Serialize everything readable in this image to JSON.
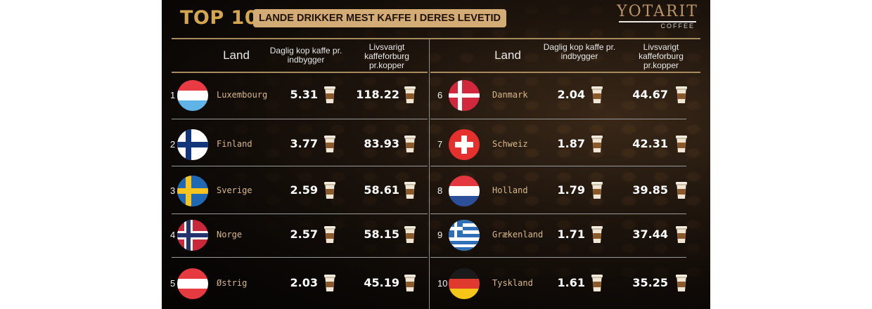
{
  "title": "TOP 10",
  "subtitle": "LANDE DRIKKER MEST KAFFE I DERES LEVETID",
  "brand": {
    "name": "YOTARIT",
    "sub": "COFFEE"
  },
  "colors": {
    "background": "#0b0806",
    "gold": "#d4a64f",
    "badge": "#d2ac74",
    "country_text": "#d8b88a",
    "value_text": "#ffffff"
  },
  "headers": {
    "land": "Land",
    "daily": [
      "Daglig kop kaffe pr.",
      "indbygger"
    ],
    "lifetime": [
      "Livsvarigt",
      "kaffeforburg",
      "pr.kopper"
    ]
  },
  "chart_data": {
    "type": "table",
    "title": "TOP 10 LANDE DRIKKER MEST KAFFE I DERES LEVETID",
    "columns": [
      "Land",
      "Daglig kop kaffe pr. indbygger",
      "Livsvarigt kaffeforburg pr.kopper"
    ],
    "rows": [
      {
        "rank": "1",
        "country": "Luxembourg",
        "daily": "5.31",
        "lifetime": "118.22",
        "flag": "luxembourg-flag"
      },
      {
        "rank": "2",
        "country": "Finland",
        "daily": "3.77",
        "lifetime": "83.93",
        "flag": "finland-flag"
      },
      {
        "rank": "3",
        "country": "Sverige",
        "daily": "2.59",
        "lifetime": "58.61",
        "flag": "sweden-flag"
      },
      {
        "rank": "4",
        "country": "Norge",
        "daily": "2.57",
        "lifetime": "58.15",
        "flag": "norway-flag"
      },
      {
        "rank": "5",
        "country": "Østrig",
        "daily": "2.03",
        "lifetime": "45.19",
        "flag": "austria-flag"
      },
      {
        "rank": "6",
        "country": "Danmark",
        "daily": "2.04",
        "lifetime": "44.67",
        "flag": "denmark-flag"
      },
      {
        "rank": "7",
        "country": "Schweiz",
        "daily": "1.87",
        "lifetime": "42.31",
        "flag": "switzerland-flag"
      },
      {
        "rank": "8",
        "country": "Holland",
        "daily": "1.79",
        "lifetime": "39.85",
        "flag": "netherlands-flag"
      },
      {
        "rank": "9",
        "country": "Grækenland",
        "daily": "1.71",
        "lifetime": "37.44",
        "flag": "greece-flag"
      },
      {
        "rank": "10",
        "country": "Tyskland",
        "daily": "1.61",
        "lifetime": "35.25",
        "flag": "germany-flag"
      }
    ]
  }
}
